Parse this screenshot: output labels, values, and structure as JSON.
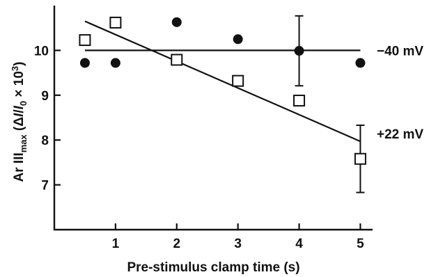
{
  "chart_data": {
    "type": "scatter",
    "title": "",
    "xlabel": "Pre-stimulus clamp time (s)",
    "ylabel_parts": [
      "Ar III",
      "max",
      " (Δ",
      "I",
      "/",
      "I",
      "0",
      " × 10",
      "3",
      ")"
    ],
    "xlim": [
      0,
      5.2
    ],
    "ylim": [
      6,
      11
    ],
    "xticks": [
      1,
      2,
      3,
      4,
      5
    ],
    "yticks": [
      7,
      8,
      9,
      10
    ],
    "grid": false,
    "series": [
      {
        "name": "−40 mV",
        "marker": "filled-circle",
        "x": [
          0.5,
          1,
          2,
          3,
          4,
          5
        ],
        "y": [
          9.72,
          9.72,
          10.63,
          10.25,
          9.99,
          9.72
        ],
        "error": [
          null,
          null,
          null,
          null,
          0.78,
          null
        ],
        "fit": {
          "x": [
            0.5,
            5
          ],
          "y": [
            10.0,
            10.0
          ]
        }
      },
      {
        "name": "+22 mV",
        "marker": "open-square",
        "x": [
          0.5,
          1,
          2,
          3,
          4,
          5
        ],
        "y": [
          10.23,
          10.62,
          9.79,
          9.32,
          8.88,
          7.58
        ],
        "error": [
          null,
          null,
          null,
          null,
          null,
          0.75
        ],
        "fit": {
          "x": [
            0.5,
            5
          ],
          "y": [
            10.65,
            7.97
          ]
        }
      }
    ]
  }
}
